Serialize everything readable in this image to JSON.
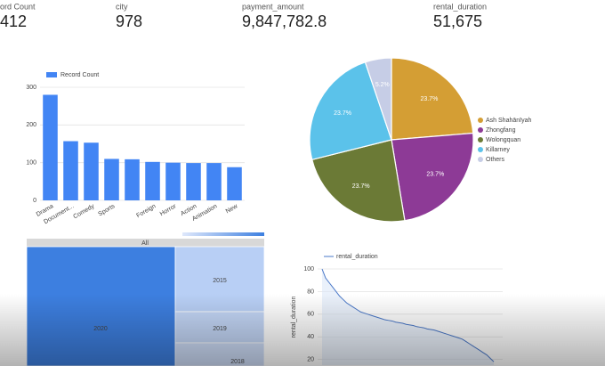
{
  "scorecards": [
    {
      "label": "ord Count",
      "value": "412"
    },
    {
      "label": "city",
      "value": "978"
    },
    {
      "label": "payment_amount",
      "value": "9,847,782.8"
    },
    {
      "label": "rental_duration",
      "value": "51,675"
    }
  ],
  "chart_data": [
    {
      "type": "bar",
      "categories": [
        "Drama",
        "Document...",
        "Comedy",
        "Sports",
        null,
        "Foreign",
        "Horror",
        "Action",
        "Animation",
        "New"
      ],
      "series": [
        {
          "name": "Record Count",
          "color": "#4285f4",
          "values": [
            280,
            157,
            153,
            110,
            109,
            102,
            100,
            99,
            99,
            88
          ]
        }
      ],
      "ylim": [
        0,
        300
      ],
      "yticks": [
        0,
        100,
        200,
        300
      ],
      "grid": true
    },
    {
      "type": "pie",
      "categories": [
        "Ash Shahānīyah",
        "Zhongfang",
        "Wolongquan",
        "Killarney",
        "Others"
      ],
      "values": [
        23.7,
        23.7,
        23.7,
        23.7,
        5.2
      ],
      "value_labels": [
        "23.7%",
        "23.7%",
        "23.7%",
        "23.7%",
        "5.2%"
      ],
      "colors": [
        "#d49e34",
        "#8d3a96",
        "#6b7a36",
        "#5bc2ea",
        "#c6cde6"
      ],
      "legend": "right"
    },
    {
      "type": "line",
      "y_label": "rental_duration",
      "series": [
        {
          "name": "rental_duration",
          "color": "#4a78c8",
          "values": [
            100,
            92,
            88,
            84,
            80,
            76,
            73,
            70,
            68,
            66,
            64,
            62,
            61,
            60,
            59,
            58,
            57,
            56,
            55,
            54.5,
            54,
            53,
            52.5,
            52,
            51,
            50.5,
            50,
            49,
            48.5,
            48,
            47,
            46.5,
            46,
            45,
            44,
            43,
            42,
            41,
            40,
            39,
            38,
            36,
            34,
            32,
            30,
            28,
            26,
            24,
            21,
            18
          ]
        }
      ],
      "ylim": [
        15,
        100
      ],
      "yticks": [
        20,
        40,
        60,
        80,
        100
      ],
      "grid": true
    }
  ],
  "treemap": {
    "header": "All",
    "cells": [
      "2020",
      "2015",
      "2019",
      "2018"
    ]
  }
}
